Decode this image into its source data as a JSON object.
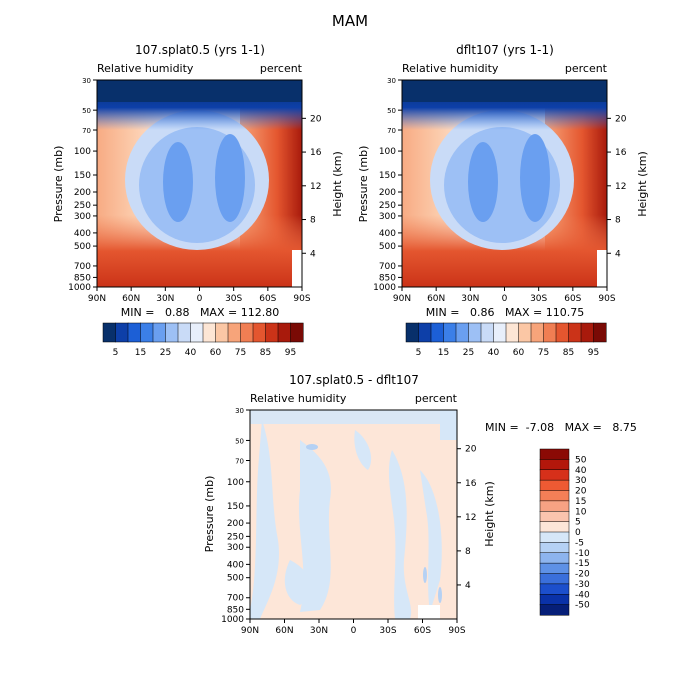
{
  "title": "MAM",
  "chart_data": [
    {
      "type": "heatmap",
      "title": "107.splat0.5 (yrs 1-1)",
      "left_label": "Relative humidity",
      "right_label": "percent",
      "ylabel": "Pressure (mb)",
      "ylabel_right": "Height (km)",
      "x_ticks": [
        "90N",
        "60N",
        "30N",
        "0",
        "30S",
        "60S",
        "90S"
      ],
      "y_ticks": [
        "30",
        "50",
        "70",
        "100",
        "150",
        "200",
        "250",
        "300",
        "400",
        "500",
        "700",
        "850",
        "1000"
      ],
      "height_ticks": [
        "20",
        "16",
        "12",
        "8",
        "4"
      ],
      "stats": "MIN =   0.88   MAX = 112.80",
      "colorbar_labels": [
        "5",
        "15",
        "25",
        "40",
        "60",
        "75",
        "85",
        "95"
      ],
      "colors": [
        "#08306b",
        "#0d3fa8",
        "#1c5fd6",
        "#3b7fe8",
        "#6a9ff0",
        "#9dc0f5",
        "#c9dbf7",
        "#e8effb",
        "#fde6d5",
        "#fbc7a5",
        "#f7a47a",
        "#f07e53",
        "#e4562f",
        "#cb3318",
        "#a81a0c",
        "#7a0a05"
      ]
    },
    {
      "type": "heatmap",
      "title": "dflt107 (yrs 1-1)",
      "left_label": "Relative humidity",
      "right_label": "percent",
      "ylabel": "Pressure (mb)",
      "ylabel_right": "Height (km)",
      "x_ticks": [
        "90N",
        "60N",
        "30N",
        "0",
        "30S",
        "60S",
        "90S"
      ],
      "y_ticks": [
        "30",
        "50",
        "70",
        "100",
        "150",
        "200",
        "250",
        "300",
        "400",
        "500",
        "700",
        "850",
        "1000"
      ],
      "height_ticks": [
        "20",
        "16",
        "12",
        "8",
        "4"
      ],
      "stats": "MIN =   0.86   MAX = 110.75",
      "colorbar_labels": [
        "5",
        "15",
        "25",
        "40",
        "60",
        "75",
        "85",
        "95"
      ],
      "colors": [
        "#08306b",
        "#0d3fa8",
        "#1c5fd6",
        "#3b7fe8",
        "#6a9ff0",
        "#9dc0f5",
        "#c9dbf7",
        "#e8effb",
        "#fde6d5",
        "#fbc7a5",
        "#f7a47a",
        "#f07e53",
        "#e4562f",
        "#cb3318",
        "#a81a0c",
        "#7a0a05"
      ]
    },
    {
      "type": "heatmap",
      "title": "107.splat0.5 - dflt107",
      "left_label": "Relative humidity",
      "right_label": "percent",
      "ylabel": "Pressure (mb)",
      "ylabel_right": "Height (km)",
      "x_ticks": [
        "90N",
        "60N",
        "30N",
        "0",
        "30S",
        "60S",
        "90S"
      ],
      "y_ticks": [
        "30",
        "50",
        "70",
        "100",
        "150",
        "200",
        "250",
        "300",
        "400",
        "500",
        "700",
        "850",
        "1000"
      ],
      "height_ticks": [
        "20",
        "16",
        "12",
        "8",
        "4"
      ],
      "stats": "MIN =  -7.08   MAX =   8.75",
      "colorbar_labels": [
        "50",
        "40",
        "30",
        "20",
        "15",
        "10",
        "5",
        "0",
        "-5",
        "-10",
        "-15",
        "-20",
        "-30",
        "-40",
        "-50"
      ],
      "colors": [
        "#8b0a05",
        "#b3170b",
        "#d6301a",
        "#ee5a33",
        "#f47f57",
        "#f7a283",
        "#fac4ae",
        "#fde6d8",
        "#d6e7f8",
        "#b5d1f4",
        "#8db4ee",
        "#5e91e6",
        "#3a6fdb",
        "#1c4fcc",
        "#0a32a8",
        "#061f78"
      ]
    }
  ]
}
